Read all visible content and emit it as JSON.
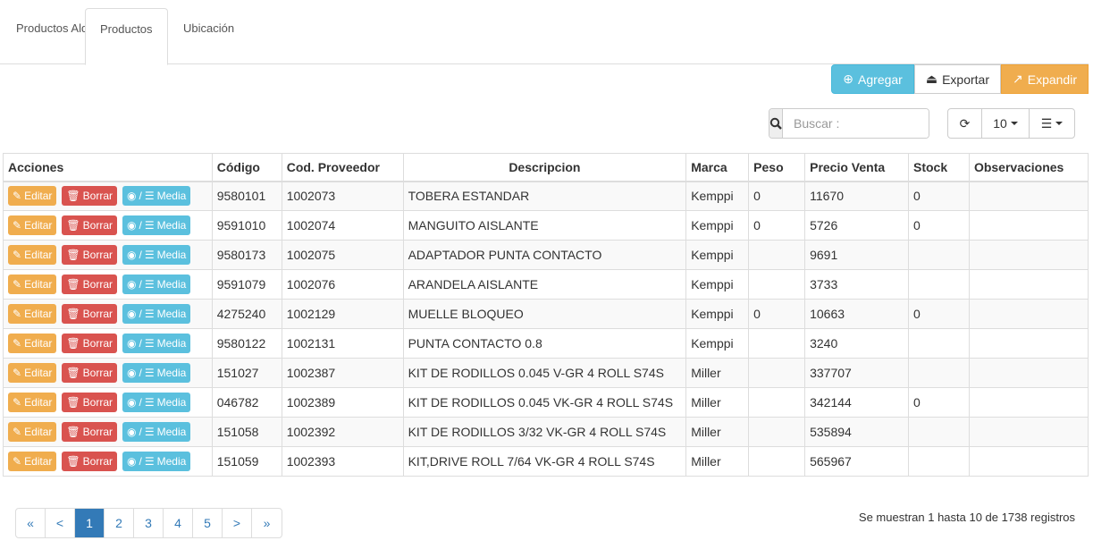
{
  "tabs": [
    {
      "label": "Productos Alquiler"
    },
    {
      "label": "Productos"
    },
    {
      "label": "Ubicación"
    }
  ],
  "toolbar": {
    "add": "Agregar",
    "export": "Exportar",
    "expand": "Expandir",
    "search_placeholder": "Buscar :",
    "page_size": "10"
  },
  "colors": {
    "info": "#5bc0de",
    "warning": "#f0ad4e",
    "danger": "#d9534f",
    "primary": "#337ab7"
  },
  "table": {
    "headers": [
      "Acciones",
      "Código",
      "Cod. Proveedor",
      "Descripcion",
      "Marca",
      "Peso",
      "Precio Venta",
      "Stock",
      "Observaciones"
    ],
    "actions": {
      "edit": "Editar",
      "delete": "Borrar",
      "media": "Media",
      "media_sep": "/"
    },
    "rows": [
      [
        "9580101",
        "1002073",
        "TOBERA ESTANDAR",
        "Kemppi",
        "0",
        "11670",
        "0",
        ""
      ],
      [
        "9591010",
        "1002074",
        "MANGUITO AISLANTE",
        "Kemppi",
        "0",
        "5726",
        "0",
        ""
      ],
      [
        "9580173",
        "1002075",
        "ADAPTADOR PUNTA CONTACTO",
        "Kemppi",
        "",
        "9691",
        "",
        ""
      ],
      [
        "9591079",
        "1002076",
        "ARANDELA AISLANTE",
        "Kemppi",
        "",
        "3733",
        "",
        ""
      ],
      [
        "4275240",
        "1002129",
        "MUELLE BLOQUEO",
        "Kemppi",
        "0",
        "10663",
        "0",
        ""
      ],
      [
        "9580122",
        "1002131",
        "PUNTA CONTACTO 0.8",
        "Kemppi",
        "",
        "3240",
        "",
        ""
      ],
      [
        "151027",
        "1002387",
        "KIT DE RODILLOS 0.045 V-GR 4 ROLL S74S",
        "Miller",
        "",
        "337707",
        "",
        ""
      ],
      [
        "046782",
        "1002389",
        "KIT DE RODILLOS 0.045 VK-GR 4 ROLL S74S",
        "Miller",
        "",
        "342144",
        "0",
        ""
      ],
      [
        "151058",
        "1002392",
        "KIT DE RODILLOS 3/32 VK-GR 4 ROLL S74S",
        "Miller",
        "",
        "535894",
        "",
        ""
      ],
      [
        "151059",
        "1002393",
        "KIT,DRIVE ROLL 7/64 VK-GR 4 ROLL S74S",
        "Miller",
        "",
        "565967",
        "",
        ""
      ]
    ]
  },
  "pagination": {
    "items": [
      "«",
      "<",
      "1",
      "2",
      "3",
      "4",
      "5",
      ">",
      "»"
    ],
    "active": "1"
  },
  "footer": {
    "info": "Se muestran 1 hasta 10 de 1738 registros"
  }
}
